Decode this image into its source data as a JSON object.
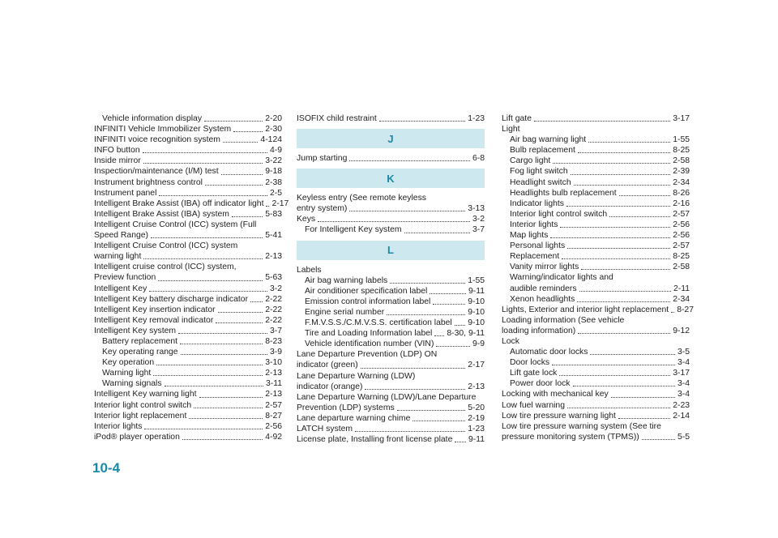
{
  "columns": [
    {
      "items": [
        {
          "sub": [
            {
              "text": "Vehicle information display",
              "page": "2-20"
            }
          ]
        },
        {
          "text": "INFINITI Vehicle Immobilizer System",
          "page": "2-30"
        },
        {
          "text": "INFINITI voice recognition system",
          "page": "4-124"
        },
        {
          "text": "INFO button",
          "page": "4-9"
        },
        {
          "text": "Inside mirror",
          "page": "3-22"
        },
        {
          "text": "Inspection/maintenance (I/M) test",
          "page": "9-18"
        },
        {
          "text": "Instrument brightness control",
          "page": "2-38"
        },
        {
          "text": "Instrument panel",
          "page": "2-5"
        },
        {
          "text": "Intelligent Brake Assist (IBA) off indicator light",
          "page": "2-17"
        },
        {
          "text": "Intelligent Brake Assist (IBA) system",
          "page": "5-83"
        },
        {
          "lines": [
            "Intelligent Cruise Control (ICC) system (Full",
            "Speed Range)"
          ],
          "page": "5-41"
        },
        {
          "lines": [
            "Intelligent Cruise Control (ICC) system",
            "warning light"
          ],
          "page": "2-13"
        },
        {
          "lines": [
            "Intelligent cruise control (ICC) system,",
            "Preview function"
          ],
          "page": "5-63"
        },
        {
          "text": "Intelligent Key",
          "page": "3-2"
        },
        {
          "text": "Intelligent Key battery discharge indicator",
          "page": "2-22"
        },
        {
          "text": "Intelligent Key insertion indicator",
          "page": "2-22"
        },
        {
          "text": "Intelligent Key removal indicator",
          "page": "2-22"
        },
        {
          "text": "Intelligent Key system",
          "page": "3-7",
          "sub": [
            {
              "text": "Battery replacement",
              "page": "8-23"
            },
            {
              "text": "Key operating range",
              "page": "3-9"
            },
            {
              "text": "Key operation",
              "page": "3-10"
            },
            {
              "text": "Warning light",
              "page": "2-13"
            },
            {
              "text": "Warning signals",
              "page": "3-11"
            }
          ]
        },
        {
          "text": "Intelligent Key warning light",
          "page": "2-13"
        },
        {
          "text": "Interior light control switch",
          "page": "2-57"
        },
        {
          "text": "Interior light replacement",
          "page": "8-27"
        },
        {
          "text": "Interior lights",
          "page": "2-56"
        },
        {
          "text": "iPod® player operation",
          "page": "4-92"
        }
      ]
    },
    {
      "items": [
        {
          "text": "ISOFIX child restraint",
          "page": "1-23"
        },
        {
          "heading": "J"
        },
        {
          "text": "Jump starting",
          "page": "6-8"
        },
        {
          "heading": "K"
        },
        {
          "lines": [
            "Keyless entry (See remote keyless",
            "entry system)"
          ],
          "page": "3-13"
        },
        {
          "text": "Keys",
          "page": "3-2",
          "sub": [
            {
              "text": "For Intelligent Key system",
              "page": "3-7"
            }
          ]
        },
        {
          "heading": "L"
        },
        {
          "text": "Labels",
          "sub": [
            {
              "text": "Air bag warning labels",
              "page": "1-55"
            },
            {
              "text": "Air conditioner specification label",
              "page": "9-11"
            },
            {
              "text": "Emission control information label",
              "page": "9-10"
            },
            {
              "text": "Engine serial number",
              "page": "9-10"
            },
            {
              "text": "F.M.V.S.S./C.M.V.S.S. certification label",
              "page": "9-10"
            },
            {
              "text": "Tire and Loading Information label",
              "page": "8-30, 9-11"
            },
            {
              "text": "Vehicle identification number (VIN)",
              "page": "9-9"
            }
          ]
        },
        {
          "lines": [
            "Lane Departure Prevention (LDP) ON",
            "indicator (green)"
          ],
          "page": "2-17"
        },
        {
          "lines": [
            "Lane Departure Warning (LDW)",
            "indicator (orange)"
          ],
          "page": "2-13"
        },
        {
          "lines": [
            "Lane Departure Warning (LDW)/Lane Departure",
            "Prevention (LDP) systems"
          ],
          "page": "5-20"
        },
        {
          "text": "Lane departure warning chime",
          "page": "2-19"
        },
        {
          "text": "LATCH system",
          "page": "1-23"
        },
        {
          "text": "License plate, Installing front license plate",
          "page": "9-11"
        }
      ]
    },
    {
      "items": [
        {
          "text": "Lift gate",
          "page": "3-17"
        },
        {
          "text": "Light",
          "sub": [
            {
              "text": "Air bag warning light",
              "page": "1-55"
            },
            {
              "text": "Bulb replacement",
              "page": "8-25"
            },
            {
              "text": "Cargo light",
              "page": "2-58"
            },
            {
              "text": "Fog light switch",
              "page": "2-39"
            },
            {
              "text": "Headlight switch",
              "page": "2-34"
            },
            {
              "text": "Headlights bulb replacement",
              "page": "8-26"
            },
            {
              "text": "Indicator lights",
              "page": "2-16"
            },
            {
              "text": "Interior light control switch",
              "page": "2-57"
            },
            {
              "text": "Interior lights",
              "page": "2-56"
            },
            {
              "text": "Map lights",
              "page": "2-56"
            },
            {
              "text": "Personal lights",
              "page": "2-57"
            },
            {
              "text": "Replacement",
              "page": "8-25"
            },
            {
              "text": "Vanity mirror lights",
              "page": "2-58"
            },
            {
              "lines": [
                "Warning/indicator lights and",
                "audible reminders"
              ],
              "page": "2-11"
            },
            {
              "text": "Xenon headlights",
              "page": "2-34"
            }
          ]
        },
        {
          "text": "Lights, Exterior and interior light replacement",
          "page": "8-27"
        },
        {
          "lines": [
            "Loading information (See vehicle",
            "loading information)"
          ],
          "page": "9-12"
        },
        {
          "text": "Lock",
          "sub": [
            {
              "text": "Automatic door locks",
              "page": "3-5"
            },
            {
              "text": "Door locks",
              "page": "3-4"
            },
            {
              "text": "Lift gate lock",
              "page": "3-17"
            },
            {
              "text": "Power door lock",
              "page": "3-4"
            }
          ]
        },
        {
          "text": "Locking with mechanical key",
          "page": "3-4"
        },
        {
          "text": "Low fuel warning",
          "page": "2-23"
        },
        {
          "text": "Low tire pressure warning light",
          "page": "2-14"
        },
        {
          "lines": [
            "Low tire pressure warning system (See tire",
            "pressure monitoring system (TPMS))"
          ],
          "page": "5-5"
        }
      ]
    }
  ],
  "page_number": "10-4"
}
